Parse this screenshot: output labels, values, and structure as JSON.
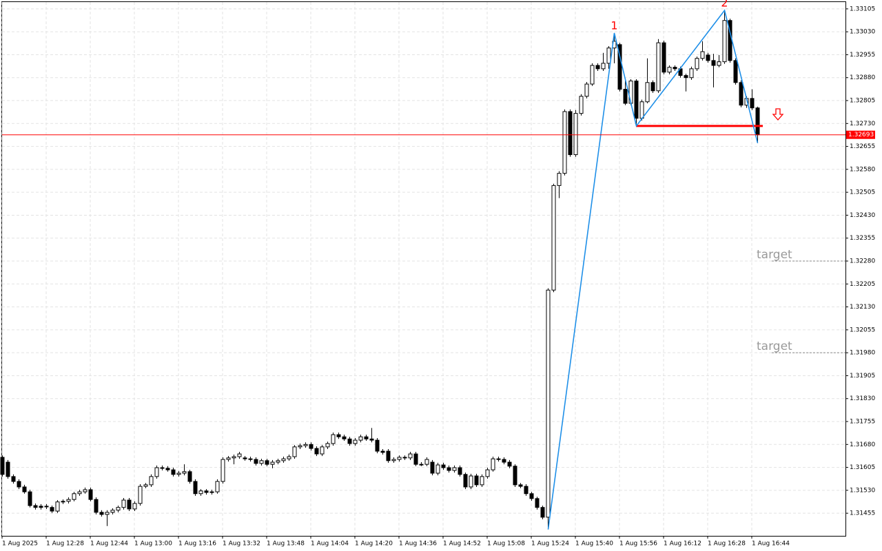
{
  "chart_data": {
    "type": "candlestick",
    "categories": [
      "1 Aug 2025",
      null,
      null,
      null,
      null,
      null,
      null,
      null,
      "1 Aug 12:28",
      null,
      null,
      null,
      null,
      null,
      null,
      null,
      "1 Aug 12:44",
      null,
      null,
      null,
      null,
      null,
      null,
      null,
      "1 Aug 13:00",
      null,
      null,
      null,
      null,
      null,
      null,
      null,
      "1 Aug 13:16",
      null,
      null,
      null,
      null,
      null,
      null,
      null,
      "1 Aug 13:32",
      null,
      null,
      null,
      null,
      null,
      null,
      null,
      "1 Aug 13:48",
      null,
      null,
      null,
      null,
      null,
      null,
      null,
      "1 Aug 14:04",
      null,
      null,
      null,
      null,
      null,
      null,
      null,
      "1 Aug 14:20",
      null,
      null,
      null,
      null,
      null,
      null,
      null,
      "1 Aug 14:36",
      null,
      null,
      null,
      null,
      null,
      null,
      null,
      "1 Aug 14:52",
      null,
      null,
      null,
      null,
      null,
      null,
      null,
      "1 Aug 15:08",
      null,
      null,
      null,
      null,
      null,
      null,
      null,
      "1 Aug 15:24",
      null,
      null,
      null,
      null,
      null,
      null,
      null,
      "1 Aug 15:40",
      null,
      null,
      null,
      null,
      null,
      null,
      null,
      "1 Aug 15:56",
      null,
      null,
      null,
      null,
      null,
      null,
      null,
      "1 Aug 16:12",
      null,
      null,
      null,
      null,
      null,
      null,
      null,
      "1 Aug 16:28",
      null,
      null,
      null,
      null,
      null,
      null,
      null,
      "1 Aug 16:44",
      null
    ],
    "open": [
      1.31638,
      1.31622,
      1.31575,
      1.31559,
      1.31541,
      1.31525,
      1.3148,
      1.31478,
      1.31476,
      1.31474,
      1.31462,
      1.31492,
      1.31494,
      1.315,
      1.31519,
      1.31525,
      1.31532,
      1.315,
      1.31458,
      1.31451,
      1.31458,
      1.31465,
      1.31474,
      1.31498,
      1.31469,
      1.31487,
      1.31543,
      1.31548,
      1.31575,
      1.31604,
      1.31602,
      1.31597,
      1.31582,
      1.31586,
      1.31591,
      1.31559,
      1.31519,
      1.31528,
      1.31523,
      1.31525,
      1.31559,
      1.31631,
      1.31636,
      1.3164,
      1.31636,
      1.31633,
      1.31631,
      1.31618,
      1.31627,
      1.31615,
      1.31622,
      1.31627,
      1.31633,
      1.3164,
      1.31672,
      1.31676,
      1.3168,
      1.31667,
      1.31649,
      1.31672,
      1.31683,
      1.31712,
      1.31705,
      1.31698,
      1.31683,
      1.31694,
      1.31705,
      1.31698,
      1.31694,
      1.31658,
      1.31658,
      1.31627,
      1.31631,
      1.31638,
      1.31636,
      1.31649,
      1.31615,
      1.31615,
      1.31622,
      1.31586,
      1.31613,
      1.31604,
      1.31595,
      1.31604,
      1.31582,
      1.31541,
      1.31577,
      1.31548,
      1.31575,
      1.31597,
      1.31633,
      1.31631,
      1.31622,
      1.31609,
      1.31548,
      1.31543,
      1.31519,
      1.31503,
      1.31474,
      1.31442,
      1.32185,
      1.32527,
      1.32567,
      1.32769,
      1.32628,
      1.32763,
      1.32819,
      1.32859,
      1.3292,
      1.32909,
      1.32927,
      1.32977,
      1.32988,
      1.32842,
      1.32796,
      1.32869,
      1.32747,
      1.32801,
      1.32864,
      1.32837,
      1.32994,
      1.32898,
      1.32914,
      1.32909,
      1.32887,
      1.3288,
      1.32909,
      1.32943,
      1.32954,
      1.32936,
      1.3292,
      1.32932,
      1.33067,
      1.32936,
      1.32864,
      1.3279,
      1.32812,
      1.32781
    ],
    "high": [
      1.31644,
      1.31629,
      1.31582,
      1.31566,
      1.31548,
      1.31532,
      1.31487,
      1.31485,
      1.31485,
      1.3148,
      1.31498,
      1.315,
      1.31507,
      1.31525,
      1.31532,
      1.31539,
      1.31539,
      1.31507,
      1.31465,
      1.31465,
      1.31471,
      1.3148,
      1.31505,
      1.31505,
      1.31494,
      1.3155,
      1.31554,
      1.31582,
      1.31611,
      1.31611,
      1.31609,
      1.31604,
      1.31593,
      1.31615,
      1.31597,
      1.31566,
      1.31534,
      1.31534,
      1.31532,
      1.31566,
      1.31638,
      1.31642,
      1.31647,
      1.31656,
      1.31642,
      1.3164,
      1.31638,
      1.31633,
      1.31633,
      1.31629,
      1.31633,
      1.3164,
      1.31647,
      1.31678,
      1.31683,
      1.31687,
      1.31687,
      1.31674,
      1.31678,
      1.31689,
      1.31719,
      1.31719,
      1.31712,
      1.31705,
      1.31701,
      1.31712,
      1.31712,
      1.31734,
      1.31701,
      1.31665,
      1.31665,
      1.31638,
      1.31644,
      1.31644,
      1.31656,
      1.31656,
      1.31622,
      1.31638,
      1.31629,
      1.3162,
      1.3162,
      1.31611,
      1.31611,
      1.31611,
      1.31588,
      1.31584,
      1.31584,
      1.31582,
      1.31604,
      1.3164,
      1.3164,
      1.31638,
      1.31629,
      1.31615,
      1.31554,
      1.3155,
      1.31525,
      1.31509,
      1.3148,
      1.32191,
      1.32533,
      1.32574,
      1.32776,
      1.32776,
      1.32774,
      1.32826,
      1.32866,
      1.32927,
      1.32927,
      1.32961,
      1.32983,
      1.33026,
      1.32994,
      1.32871,
      1.32875,
      1.32875,
      1.32808,
      1.32943,
      1.32871,
      1.33006,
      1.33001,
      1.3292,
      1.3292,
      1.32916,
      1.32893,
      1.32916,
      1.32949,
      1.32999,
      1.32961,
      1.32958,
      1.32954,
      1.331,
      1.33073,
      1.32943,
      1.32871,
      1.32819,
      1.32842,
      1.32785
    ],
    "low": [
      1.31575,
      1.31568,
      1.31552,
      1.31534,
      1.31519,
      1.31474,
      1.31467,
      1.31467,
      1.31469,
      1.31456,
      1.31456,
      1.31485,
      1.31487,
      1.31494,
      1.31512,
      1.31519,
      1.31494,
      1.31451,
      1.31444,
      1.31413,
      1.31451,
      1.31458,
      1.31467,
      1.31462,
      1.31462,
      1.3148,
      1.31537,
      1.31541,
      1.31568,
      1.31595,
      1.31591,
      1.31575,
      1.31575,
      1.31579,
      1.31552,
      1.31512,
      1.31512,
      1.31516,
      1.31516,
      1.31519,
      1.31552,
      1.31624,
      1.31615,
      1.31633,
      1.31627,
      1.31624,
      1.31611,
      1.31611,
      1.31609,
      1.31602,
      1.31615,
      1.3162,
      1.31627,
      1.31633,
      1.31665,
      1.31669,
      1.3166,
      1.31642,
      1.31642,
      1.31665,
      1.31676,
      1.31698,
      1.31692,
      1.31676,
      1.31676,
      1.31687,
      1.31692,
      1.31687,
      1.31651,
      1.31647,
      1.3162,
      1.3162,
      1.31624,
      1.31629,
      1.31629,
      1.31609,
      1.31609,
      1.31609,
      1.31579,
      1.31579,
      1.31597,
      1.31588,
      1.31588,
      1.31575,
      1.31534,
      1.31534,
      1.31541,
      1.31541,
      1.31568,
      1.31591,
      1.31624,
      1.31615,
      1.31602,
      1.31541,
      1.31537,
      1.31512,
      1.31496,
      1.31467,
      1.31435,
      1.31402,
      1.32178,
      1.32486,
      1.3256,
      1.32621,
      1.32621,
      1.32756,
      1.32812,
      1.32853,
      1.32902,
      1.32902,
      1.32909,
      1.32927,
      1.32835,
      1.3279,
      1.3279,
      1.32722,
      1.3274,
      1.32796,
      1.3283,
      1.3283,
      1.32891,
      1.32891,
      1.32902,
      1.3288,
      1.32835,
      1.32873,
      1.32902,
      1.32936,
      1.32929,
      1.32848,
      1.32914,
      1.32925,
      1.32929,
      1.32857,
      1.32783,
      1.32781,
      1.32774,
      1.32666
    ],
    "close": [
      1.31582,
      1.31575,
      1.31559,
      1.31541,
      1.31525,
      1.3148,
      1.31474,
      1.31474,
      1.31478,
      1.31462,
      1.31492,
      1.31494,
      1.315,
      1.31519,
      1.31525,
      1.31532,
      1.315,
      1.31458,
      1.31451,
      1.31458,
      1.31465,
      1.31474,
      1.31498,
      1.31469,
      1.31487,
      1.31543,
      1.31548,
      1.31575,
      1.31604,
      1.31602,
      1.31597,
      1.31582,
      1.31586,
      1.31591,
      1.31559,
      1.31519,
      1.31528,
      1.31523,
      1.31525,
      1.31559,
      1.31631,
      1.31636,
      1.3164,
      1.31649,
      1.31633,
      1.31631,
      1.31618,
      1.31627,
      1.31615,
      1.31622,
      1.31627,
      1.31633,
      1.3164,
      1.31672,
      1.31676,
      1.3168,
      1.31667,
      1.31649,
      1.31672,
      1.31683,
      1.31712,
      1.31705,
      1.31698,
      1.31683,
      1.31694,
      1.31705,
      1.31698,
      1.31694,
      1.31658,
      1.31654,
      1.31627,
      1.31631,
      1.31638,
      1.31636,
      1.31649,
      1.31615,
      1.31615,
      1.31631,
      1.31586,
      1.31613,
      1.31604,
      1.31595,
      1.31604,
      1.31582,
      1.31541,
      1.31577,
      1.31548,
      1.31575,
      1.31597,
      1.31633,
      1.31631,
      1.31622,
      1.31609,
      1.31548,
      1.31543,
      1.31519,
      1.31503,
      1.31474,
      1.31442,
      1.32185,
      1.32527,
      1.32567,
      1.32769,
      1.32628,
      1.32763,
      1.32819,
      1.32859,
      1.3292,
      1.32909,
      1.32927,
      1.32977,
      1.32999,
      1.32842,
      1.32796,
      1.32869,
      1.32747,
      1.32801,
      1.32864,
      1.32837,
      1.32994,
      1.32898,
      1.32914,
      1.32909,
      1.32887,
      1.3288,
      1.32909,
      1.32943,
      1.32965,
      1.32936,
      1.3292,
      1.32932,
      1.33067,
      1.32936,
      1.32864,
      1.3279,
      1.32812,
      1.32781,
      1.32693
    ],
    "bull_color": "#ffffff",
    "bear_color": "#000000",
    "ylim": [
      1.31381,
      1.33134
    ],
    "yticks": [
      {
        "value": 1.33105,
        "label": "1.33105"
      },
      {
        "value": 1.3303,
        "label": "1.33030"
      },
      {
        "value": 1.32955,
        "label": "1.32955"
      },
      {
        "value": 1.3288,
        "label": "1.32880"
      },
      {
        "value": 1.32805,
        "label": "1.32805"
      },
      {
        "value": 1.3273,
        "label": "1.32730"
      },
      {
        "value": 1.32655,
        "label": "1.32655"
      },
      {
        "value": 1.3258,
        "label": "1.32580"
      },
      {
        "value": 1.32505,
        "label": "1.32505"
      },
      {
        "value": 1.3243,
        "label": "1.32430"
      },
      {
        "value": 1.32355,
        "label": "1.32355"
      },
      {
        "value": 1.3228,
        "label": "1.32280"
      },
      {
        "value": 1.32205,
        "label": "1.32205"
      },
      {
        "value": 1.3213,
        "label": "1.32130"
      },
      {
        "value": 1.32055,
        "label": "1.32055"
      },
      {
        "value": 1.3198,
        "label": "1.31980"
      },
      {
        "value": 1.31905,
        "label": "1.31905"
      },
      {
        "value": 1.3183,
        "label": "1.31830"
      },
      {
        "value": 1.31755,
        "label": "1.31755"
      },
      {
        "value": 1.3168,
        "label": "1.31680"
      },
      {
        "value": 1.31605,
        "label": "1.31605"
      },
      {
        "value": 1.3153,
        "label": "1.31530"
      },
      {
        "value": 1.31455,
        "label": "1.31455"
      }
    ],
    "grid": true,
    "last_price": {
      "value": 1.32693,
      "label": "1.32693",
      "color": "#ff0000"
    },
    "zigzag": {
      "values": [
        1.31402,
        1.33026,
        1.32722,
        1.331,
        1.32666
      ],
      "labels": [
        null,
        "1",
        null,
        "2",
        null
      ],
      "color": "#1e8fe8"
    },
    "neckline": {
      "value": 1.32722,
      "color": "#ff0000"
    },
    "targets": [
      {
        "value": 1.3228,
        "label": "target"
      },
      {
        "value": 1.3198,
        "label": "target"
      }
    ]
  }
}
